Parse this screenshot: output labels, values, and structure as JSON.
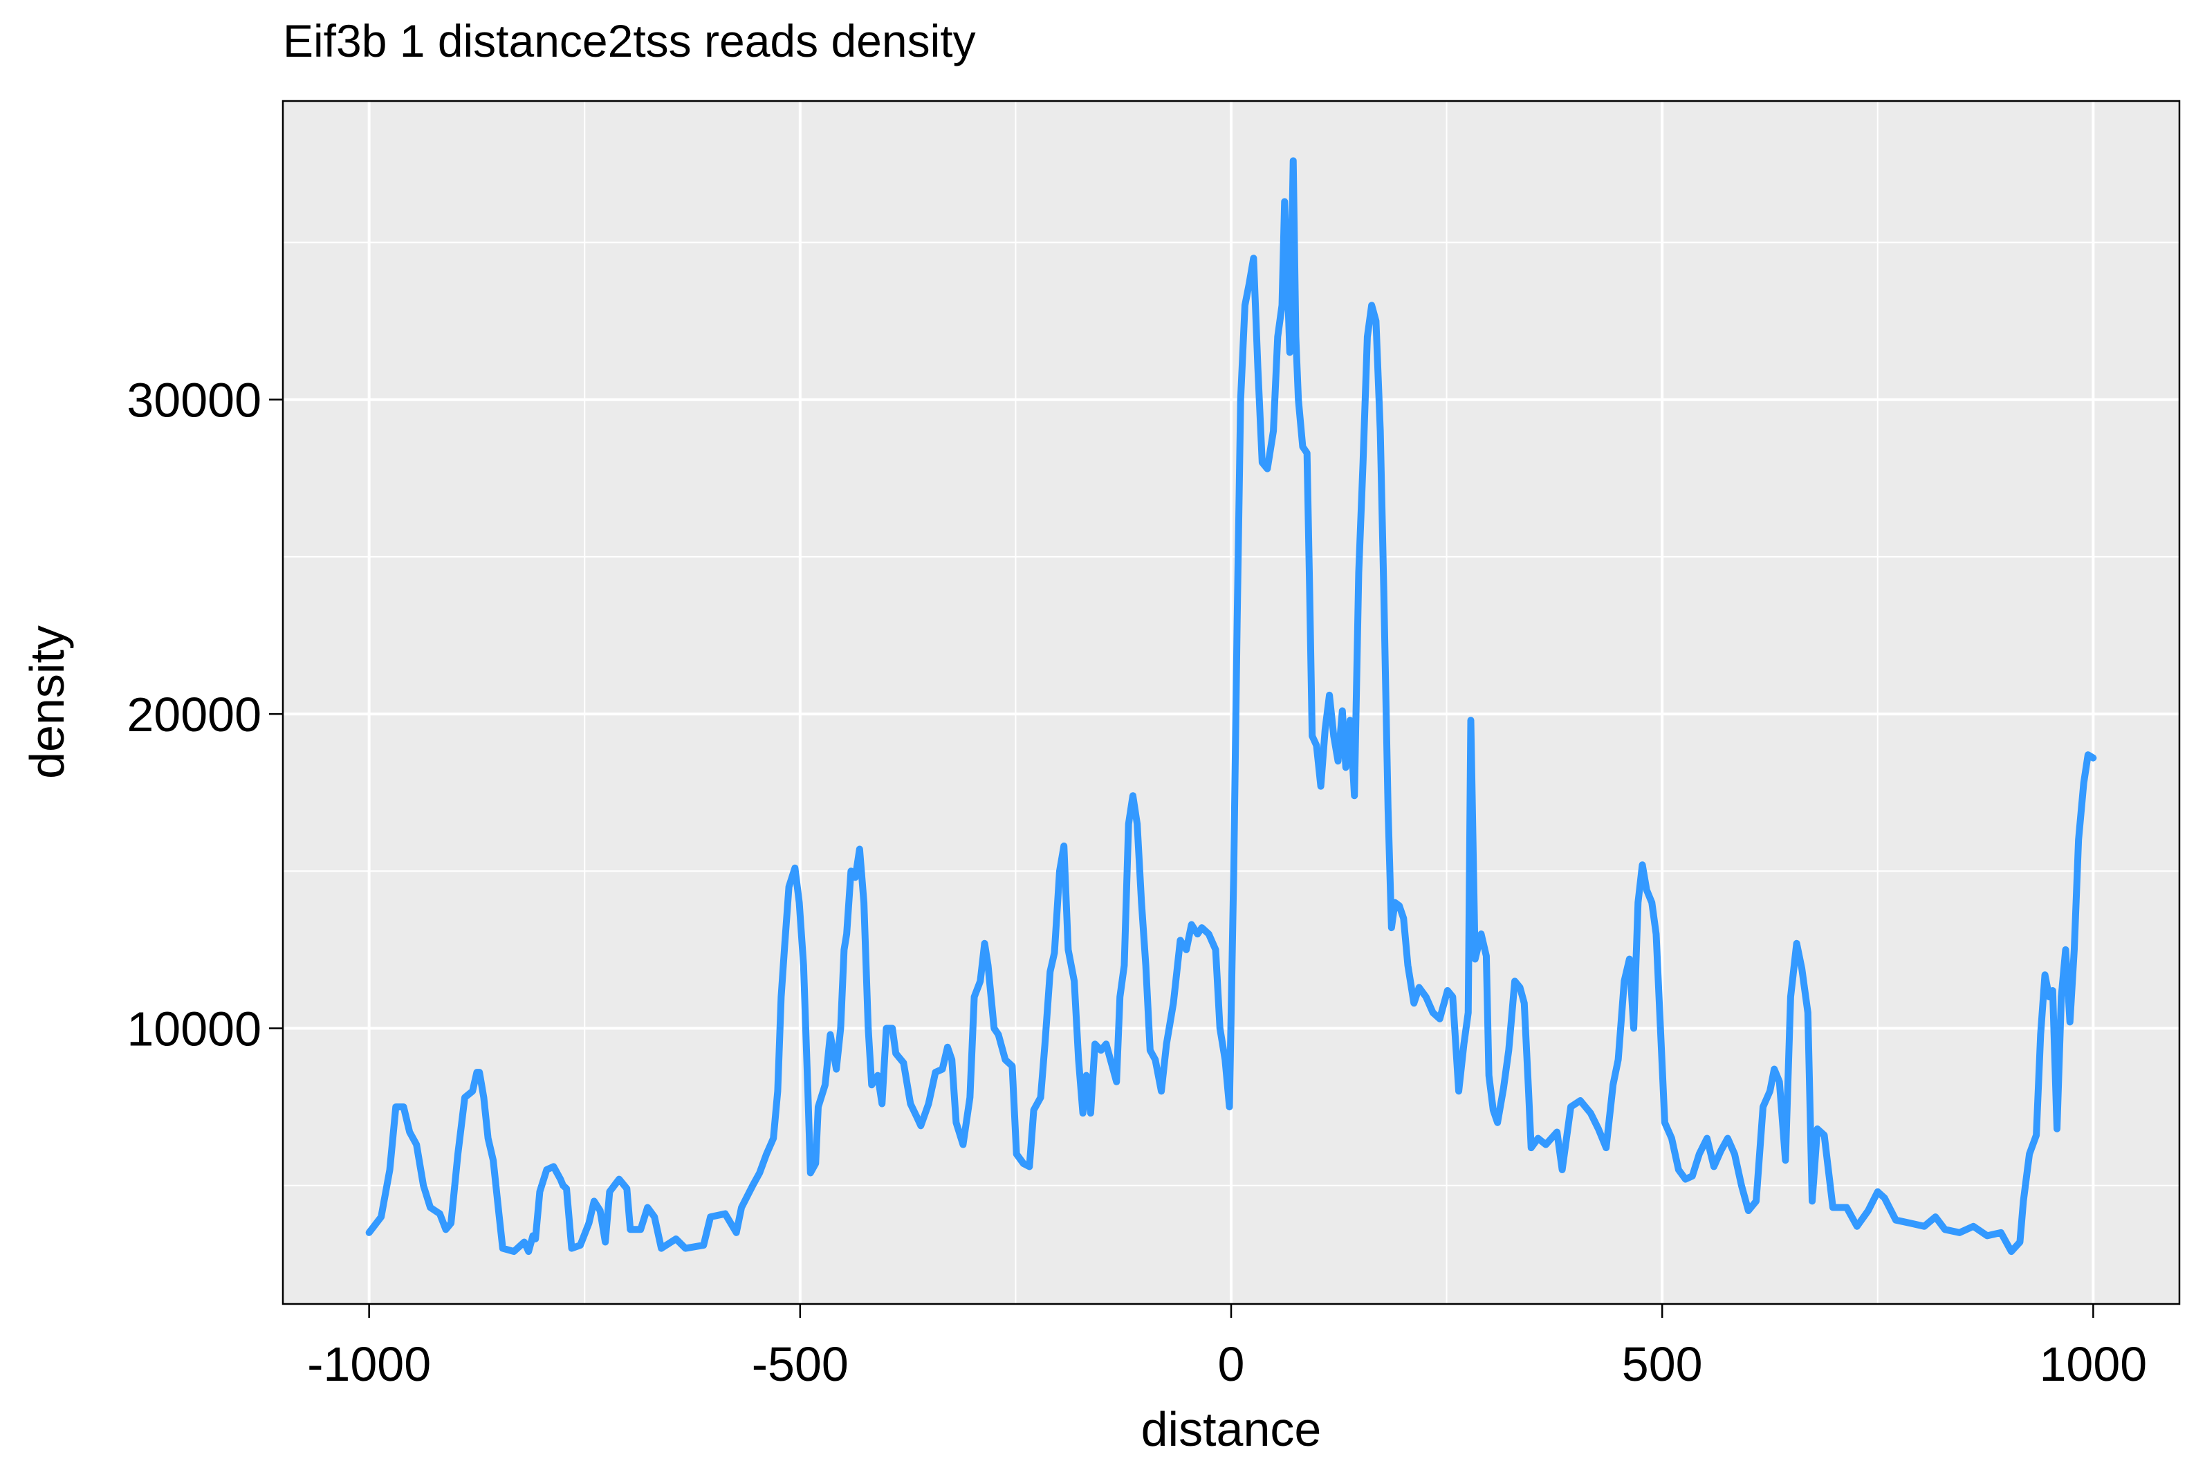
{
  "chart_data": {
    "type": "line",
    "title": "Eif3b 1 distance2tss reads density",
    "x_label": "distance",
    "y_label": "density",
    "xlim": [
      -1100,
      1100
    ],
    "ylim": [
      1230,
      39500
    ],
    "xticks": [
      -1000,
      -500,
      0,
      500,
      1000
    ],
    "yticks": [
      10000,
      20000,
      30000
    ],
    "xminor": [
      -750,
      -250,
      250,
      750
    ],
    "yminor": [
      5000,
      15000,
      25000,
      35000
    ],
    "grid": true,
    "series": [
      {
        "color": "#3399ff",
        "x": [
          -1000,
          -986,
          -976,
          -969,
          -960,
          -953,
          -945,
          -937,
          -929,
          -918,
          -911,
          -905,
          -897,
          -889,
          -880,
          -875,
          -872,
          -867,
          -862,
          -856,
          -849,
          -845,
          -832,
          -820,
          -815,
          -810,
          -807,
          -802,
          -794,
          -786,
          -778,
          -775,
          -771,
          -765,
          -755,
          -745,
          -739,
          -732,
          -726,
          -721,
          -710,
          -701,
          -697,
          -685,
          -677,
          -669,
          -661,
          -644,
          -633,
          -612,
          -604,
          -587,
          -574,
          -568,
          -555,
          -547,
          -539,
          -531,
          -526,
          -522,
          -518,
          -513,
          -506,
          -501,
          -496,
          -491,
          -488,
          -482,
          -479,
          -471,
          -465,
          -458,
          -453,
          -449,
          -446,
          -441,
          -436,
          -431,
          -426,
          -421,
          -417,
          -410,
          -405,
          -400,
          -393,
          -389,
          -380,
          -372,
          -365,
          -360,
          -351,
          -343,
          -335,
          -329,
          -324,
          -319,
          -311,
          -303,
          -298,
          -291,
          -286,
          -282,
          -275,
          -270,
          -262,
          -254,
          -249,
          -241,
          -234,
          -229,
          -221,
          -216,
          -210,
          -205,
          -199,
          -194,
          -189,
          -182,
          -177,
          -172,
          -168,
          -163,
          -158,
          -151,
          -145,
          -140,
          -133,
          -129,
          -124,
          -119,
          -114,
          -109,
          -104,
          -99,
          -94,
          -88,
          -81,
          -75,
          -67,
          -59,
          -52,
          -46,
          -39,
          -34,
          -26,
          -18,
          -13,
          -7,
          -2,
          3,
          7,
          11,
          16,
          21,
          26,
          31,
          36,
          42,
          49,
          54,
          59,
          62,
          65,
          68,
          72,
          75,
          78,
          83,
          88,
          91,
          94,
          99,
          104,
          109,
          114,
          119,
          124,
          129,
          133,
          138,
          143,
          148,
          153,
          158,
          163,
          168,
          173,
          177,
          182,
          186,
          190,
          195,
          200,
          205,
          212,
          218,
          226,
          234,
          242,
          251,
          257,
          264,
          270,
          275,
          278,
          283,
          290,
          296,
          299,
          304,
          309,
          316,
          322,
          329,
          335,
          340,
          345,
          348,
          356,
          365,
          378,
          384,
          394,
          405,
          417,
          426,
          435,
          443,
          449,
          456,
          462,
          467,
          472,
          477,
          482,
          488,
          493,
          498,
          503,
          511,
          519,
          527,
          535,
          543,
          552,
          560,
          568,
          576,
          584,
          592,
          600,
          609,
          617,
          625,
          630,
          636,
          643,
          649,
          656,
          662,
          669,
          674,
          680,
          688,
          698,
          714,
          726,
          739,
          750,
          758,
          771,
          788,
          804,
          817,
          828,
          845,
          861,
          877,
          893,
          905,
          915,
          919,
          926,
          934,
          939,
          944,
          949,
          953,
          958,
          963,
          968,
          973,
          978,
          983,
          989,
          994,
          1000
        ],
        "values": [
          3500,
          4000,
          5500,
          7500,
          7500,
          6700,
          6300,
          5000,
          4300,
          4100,
          3600,
          3800,
          6000,
          7800,
          8000,
          8600,
          8600,
          7800,
          6500,
          5800,
          4000,
          3000,
          2900,
          3200,
          2900,
          3400,
          3300,
          4800,
          5500,
          5600,
          5200,
          5000,
          4900,
          3000,
          3100,
          3800,
          4500,
          4200,
          3200,
          4800,
          5200,
          4900,
          3600,
          3600,
          4300,
          4000,
          3000,
          3300,
          3000,
          3100,
          4000,
          4100,
          3500,
          4300,
          5000,
          5400,
          6000,
          6500,
          8000,
          11000,
          12600,
          14500,
          15100,
          14000,
          12000,
          8000,
          5400,
          5700,
          7500,
          8200,
          9800,
          8700,
          10000,
          12500,
          13000,
          15000,
          14800,
          15700,
          14000,
          10000,
          8200,
          8500,
          7600,
          10000,
          10000,
          9200,
          8900,
          7600,
          7200,
          6900,
          7600,
          8600,
          8700,
          9400,
          9000,
          7000,
          6300,
          7800,
          11000,
          11500,
          12700,
          12000,
          10000,
          9800,
          9000,
          8800,
          6000,
          5700,
          5600,
          7400,
          7800,
          9500,
          11800,
          12400,
          15000,
          15800,
          12500,
          11500,
          9000,
          7300,
          8500,
          7300,
          9500,
          9300,
          9500,
          9000,
          8300,
          11000,
          12000,
          16500,
          17400,
          16500,
          14000,
          12000,
          9300,
          9000,
          8000,
          9500,
          10800,
          12800,
          12500,
          13300,
          13000,
          13200,
          13000,
          12500,
          10000,
          9000,
          7500,
          15000,
          23000,
          30000,
          33000,
          33700,
          34500,
          31000,
          28000,
          27800,
          29000,
          32000,
          33000,
          36300,
          34000,
          31500,
          37600,
          32000,
          30000,
          28500,
          28300,
          24000,
          19300,
          19000,
          17700,
          19500,
          20600,
          19300,
          18500,
          20100,
          18300,
          19800,
          17400,
          24500,
          28000,
          32000,
          33000,
          32500,
          29000,
          24000,
          17000,
          13200,
          14000,
          13900,
          13500,
          12000,
          10800,
          11300,
          11000,
          10500,
          10300,
          11200,
          11000,
          8000,
          9500,
          10500,
          19800,
          12200,
          13000,
          12300,
          8500,
          7400,
          7000,
          8100,
          9300,
          11500,
          11300,
          10800,
          8000,
          6200,
          6500,
          6300,
          6700,
          5500,
          7500,
          7700,
          7300,
          6800,
          6200,
          8200,
          9000,
          11500,
          12200,
          10000,
          14000,
          15200,
          14400,
          14000,
          13000,
          10000,
          7000,
          6500,
          5500,
          5200,
          5300,
          6000,
          6500,
          5600,
          6100,
          6500,
          6000,
          5000,
          4200,
          4500,
          7500,
          8000,
          8700,
          8300,
          5800,
          11000,
          12700,
          11900,
          10500,
          4500,
          6800,
          6600,
          4300,
          4300,
          3700,
          4200,
          4800,
          4600,
          3900,
          3800,
          3700,
          4000,
          3600,
          3500,
          3700,
          3400,
          3500,
          2900,
          3200,
          4500,
          6000,
          6600,
          9800,
          11700,
          11000,
          11200,
          6800,
          11000,
          12500,
          10200,
          12500,
          16000,
          17800,
          18700,
          18600
        ]
      }
    ]
  }
}
